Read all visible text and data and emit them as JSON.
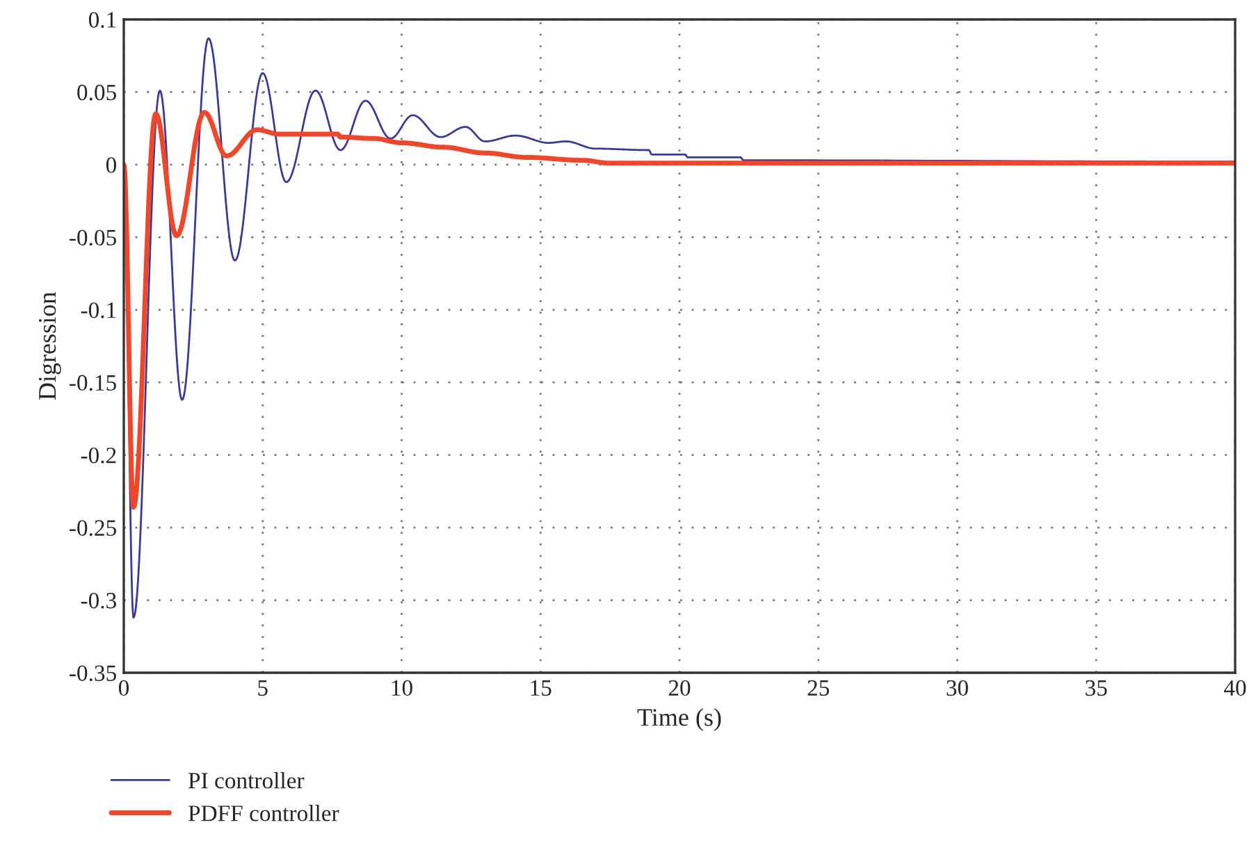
{
  "chart_data": {
    "type": "line",
    "xlabel": "Time (s)",
    "ylabel": "Digression",
    "xlim": [
      0,
      40
    ],
    "xticks": [
      0,
      5,
      10,
      15,
      20,
      25,
      30,
      35,
      40
    ],
    "ylim": [
      -0.35,
      0.1
    ],
    "yticks": [
      -0.35,
      -0.3,
      -0.25,
      -0.2,
      -0.15,
      -0.1,
      -0.05,
      0,
      0.05,
      0.1
    ],
    "grid": true,
    "legend": "bottom left",
    "line_style": "solid",
    "marker": "none",
    "series": [
      {
        "name": "PI controller",
        "color": "#3a3a9a",
        "x": [
          0,
          0.35,
          1.3,
          2.1,
          3.05,
          4.0,
          5.0,
          5.85,
          6.9,
          7.8,
          8.7,
          9.6,
          10.4,
          11.4,
          12.3,
          13.0,
          14.1,
          15.3,
          15.9,
          17.0,
          18.9,
          19.0,
          20.2,
          20.3,
          22.2,
          22.3,
          40
        ],
        "values": [
          0,
          -0.312,
          0.051,
          -0.162,
          0.087,
          -0.066,
          0.063,
          -0.012,
          0.051,
          0.01,
          0.044,
          0.018,
          0.034,
          0.019,
          0.026,
          0.016,
          0.02,
          0.015,
          0.016,
          0.011,
          0.01,
          0.007,
          0.007,
          0.005,
          0.005,
          0.003,
          0.002
        ]
      },
      {
        "name": "PDFF controller",
        "color": "#f0462a",
        "x": [
          0,
          0.35,
          1.15,
          1.9,
          2.9,
          3.7,
          4.8,
          5.6,
          7.7,
          7.8,
          9.0,
          10.0,
          11.5,
          13.0,
          14.5,
          16.5,
          17.5,
          40
        ],
        "values": [
          0,
          -0.236,
          0.035,
          -0.049,
          0.036,
          0.006,
          0.024,
          0.021,
          0.021,
          0.019,
          0.018,
          0.015,
          0.012,
          0.008,
          0.005,
          0.003,
          0.001,
          0.001
        ]
      }
    ]
  }
}
